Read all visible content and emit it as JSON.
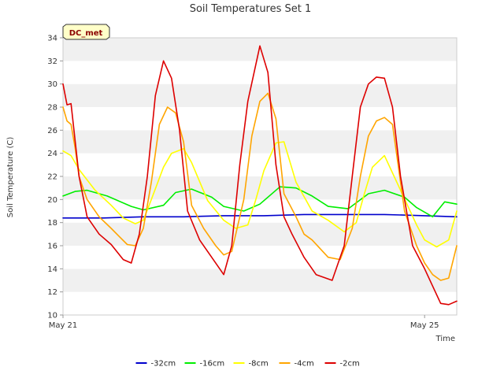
{
  "chart_data": {
    "type": "line",
    "title": "Soil Temperatures Set 1",
    "xlabel": "Time",
    "ylabel": "Soil Temperature (C)",
    "site_badge": "DC_met",
    "xlim": [
      0,
      4.9
    ],
    "ylim": [
      10,
      34
    ],
    "yticks": [
      10,
      12,
      14,
      16,
      18,
      20,
      22,
      24,
      26,
      28,
      30,
      32,
      34
    ],
    "xticks": [
      {
        "value": 0,
        "label": "May 21"
      },
      {
        "value": 4.5,
        "label": "May 25"
      }
    ],
    "grid": "horizontal alternating bands",
    "legend_position": "bottom-center",
    "series": [
      {
        "name": "-32cm",
        "color": "#0000cc",
        "x": [
          0,
          0.5,
          1.0,
          1.5,
          2.0,
          2.5,
          3.0,
          3.5,
          4.0,
          4.5,
          4.9
        ],
        "y": [
          18.4,
          18.4,
          18.5,
          18.5,
          18.6,
          18.6,
          18.7,
          18.7,
          18.7,
          18.6,
          18.5
        ]
      },
      {
        "name": "-16cm",
        "color": "#00ee00",
        "x": [
          0,
          0.15,
          0.3,
          0.55,
          0.85,
          1.0,
          1.25,
          1.4,
          1.6,
          1.85,
          2.0,
          2.25,
          2.45,
          2.7,
          2.9,
          3.1,
          3.3,
          3.55,
          3.8,
          4.0,
          4.25,
          4.4,
          4.6,
          4.75,
          4.9
        ],
        "y": [
          20.3,
          20.7,
          20.8,
          20.3,
          19.4,
          19.1,
          19.5,
          20.6,
          20.9,
          20.2,
          19.4,
          19.0,
          19.6,
          21.1,
          21.0,
          20.3,
          19.4,
          19.2,
          20.5,
          20.8,
          20.2,
          19.3,
          18.5,
          19.8,
          19.6
        ]
      },
      {
        "name": "-8cm",
        "color": "#ffff00",
        "x": [
          0,
          0.1,
          0.2,
          0.4,
          0.6,
          0.75,
          0.9,
          1.0,
          1.1,
          1.25,
          1.35,
          1.5,
          1.6,
          1.8,
          2.0,
          2.15,
          2.3,
          2.4,
          2.5,
          2.65,
          2.75,
          2.9,
          3.1,
          3.3,
          3.5,
          3.65,
          3.75,
          3.85,
          4.0,
          4.2,
          4.4,
          4.5,
          4.65,
          4.8,
          4.9
        ],
        "y": [
          24.2,
          23.8,
          22.6,
          20.8,
          19.5,
          18.4,
          17.9,
          18.2,
          20.0,
          22.8,
          24.0,
          24.4,
          23.2,
          19.9,
          18.2,
          17.5,
          17.8,
          20.0,
          22.5,
          24.9,
          25.0,
          21.5,
          19.0,
          18.2,
          17.2,
          18.0,
          20.5,
          22.8,
          23.8,
          20.8,
          17.8,
          16.5,
          15.9,
          16.5,
          19.0
        ]
      },
      {
        "name": "-4cm",
        "color": "#ffa500",
        "x": [
          0,
          0.05,
          0.1,
          0.15,
          0.2,
          0.3,
          0.45,
          0.6,
          0.7,
          0.8,
          0.9,
          1.0,
          1.1,
          1.2,
          1.3,
          1.4,
          1.5,
          1.6,
          1.75,
          1.9,
          2.0,
          2.1,
          2.25,
          2.35,
          2.45,
          2.55,
          2.65,
          2.75,
          2.9,
          3.0,
          3.1,
          3.3,
          3.45,
          3.6,
          3.7,
          3.8,
          3.9,
          4.0,
          4.1,
          4.25,
          4.4,
          4.5,
          4.6,
          4.7,
          4.8,
          4.9
        ],
        "y": [
          28.0,
          26.8,
          26.5,
          24.5,
          22.0,
          20.0,
          18.5,
          17.5,
          16.8,
          16.1,
          16.0,
          17.5,
          21.5,
          26.5,
          28.0,
          27.5,
          25.0,
          19.5,
          17.5,
          16.0,
          15.2,
          15.5,
          20.0,
          25.5,
          28.5,
          29.2,
          27.0,
          20.5,
          18.5,
          17.0,
          16.5,
          15.0,
          14.8,
          17.5,
          22.0,
          25.5,
          26.8,
          27.1,
          26.5,
          19.0,
          16.0,
          14.5,
          13.5,
          13.0,
          13.2,
          16.0
        ]
      },
      {
        "name": "-2cm",
        "color": "#dd0000",
        "x": [
          0,
          0.05,
          0.1,
          0.2,
          0.3,
          0.45,
          0.6,
          0.75,
          0.85,
          0.95,
          1.05,
          1.15,
          1.25,
          1.35,
          1.45,
          1.55,
          1.7,
          1.85,
          2.0,
          2.1,
          2.2,
          2.3,
          2.45,
          2.55,
          2.65,
          2.75,
          2.85,
          3.0,
          3.15,
          3.35,
          3.5,
          3.6,
          3.7,
          3.8,
          3.9,
          4.0,
          4.1,
          4.2,
          4.35,
          4.5,
          4.6,
          4.7,
          4.8,
          4.9
        ],
        "y": [
          30.0,
          28.2,
          28.3,
          22.0,
          18.5,
          17.0,
          16.1,
          14.8,
          14.5,
          17.0,
          22.0,
          29.0,
          32.0,
          30.5,
          26.0,
          19.0,
          16.5,
          15.0,
          13.5,
          16.0,
          23.0,
          28.5,
          33.3,
          31.0,
          23.0,
          18.5,
          17.0,
          15.0,
          13.5,
          13.0,
          16.0,
          22.0,
          28.0,
          30.0,
          30.6,
          30.5,
          28.0,
          22.0,
          16.0,
          14.0,
          12.5,
          11.0,
          10.9,
          11.2
        ]
      }
    ]
  }
}
